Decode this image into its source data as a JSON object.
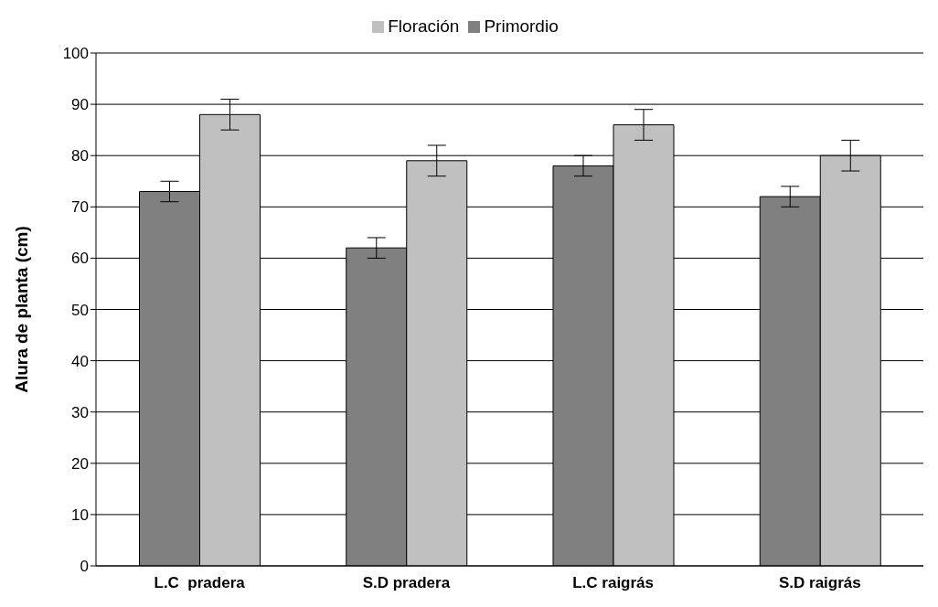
{
  "chart_data": {
    "type": "bar",
    "ylabel": "Alura de planta (cm)",
    "categories": [
      "L.C  pradera",
      "S.D pradera",
      "L.C raigrás",
      "S.D raigrás"
    ],
    "series": [
      {
        "name": "Primordio",
        "color": "#808080",
        "values": [
          73,
          62,
          78,
          72
        ],
        "errors": [
          2,
          2,
          2,
          2
        ]
      },
      {
        "name": "Floración",
        "color": "#c0c0c0",
        "values": [
          88,
          79,
          86,
          80
        ],
        "errors": [
          3,
          3,
          3,
          3
        ]
      }
    ],
    "ylim": [
      0,
      100
    ],
    "yticks": [
      0,
      10,
      20,
      30,
      40,
      50,
      60,
      70,
      80,
      90,
      100
    ],
    "grid": "y",
    "legend": "top"
  }
}
